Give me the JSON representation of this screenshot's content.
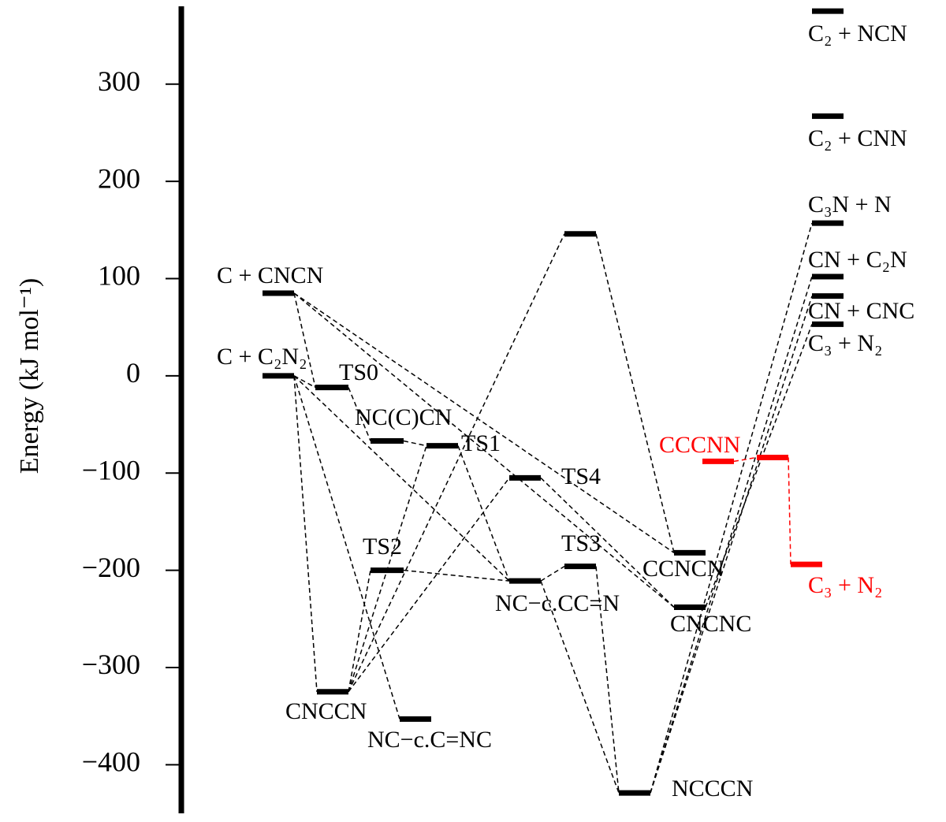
{
  "chart_data": {
    "type": "energy-diagram",
    "y_label": "Energy (kJ mol⁻¹)",
    "ylim": [
      -450,
      380
    ],
    "yticks": [
      {
        "value": -400,
        "label": "−400"
      },
      {
        "value": -300,
        "label": "−300"
      },
      {
        "value": -200,
        "label": "−200"
      },
      {
        "value": -100,
        "label": "−100"
      },
      0,
      100,
      200,
      300
    ],
    "categories": [
      "C + CNCN",
      "C + C₂N₂",
      "TS0",
      "NC(C)CN",
      "TS1",
      "TS4",
      null,
      "TS2",
      "TS3",
      "NC−c.CC=N",
      "CNCCN",
      "NC−c.C=NC",
      "NCCCN",
      "CCNCN",
      "CNCNC",
      "CCCNN",
      null,
      "C₃ + N₂",
      "C₂ + NCN",
      "C₂ + CNN",
      "C₃N + N",
      "CN + C₂N",
      "CN + CNC",
      "C₃ + N₂"
    ],
    "values": [
      85,
      0,
      -12,
      -67,
      -72,
      -105,
      146,
      -200,
      -196,
      -211,
      -325,
      -353,
      -429,
      -182,
      -238,
      -88,
      -84,
      -194,
      375,
      267,
      157,
      102,
      82,
      53
    ],
    "colors": [
      "#000000",
      "#000000",
      "#000000",
      "#000000",
      "#000000",
      "#000000",
      "#000000",
      "#000000",
      "#000000",
      "#000000",
      "#000000",
      "#000000",
      "#000000",
      "#000000",
      "#000000",
      "#ff0000",
      "#ff0000",
      "#ff0000",
      "#000000",
      "#000000",
      "#000000",
      "#000000",
      "#000000",
      "#000000"
    ]
  }
}
